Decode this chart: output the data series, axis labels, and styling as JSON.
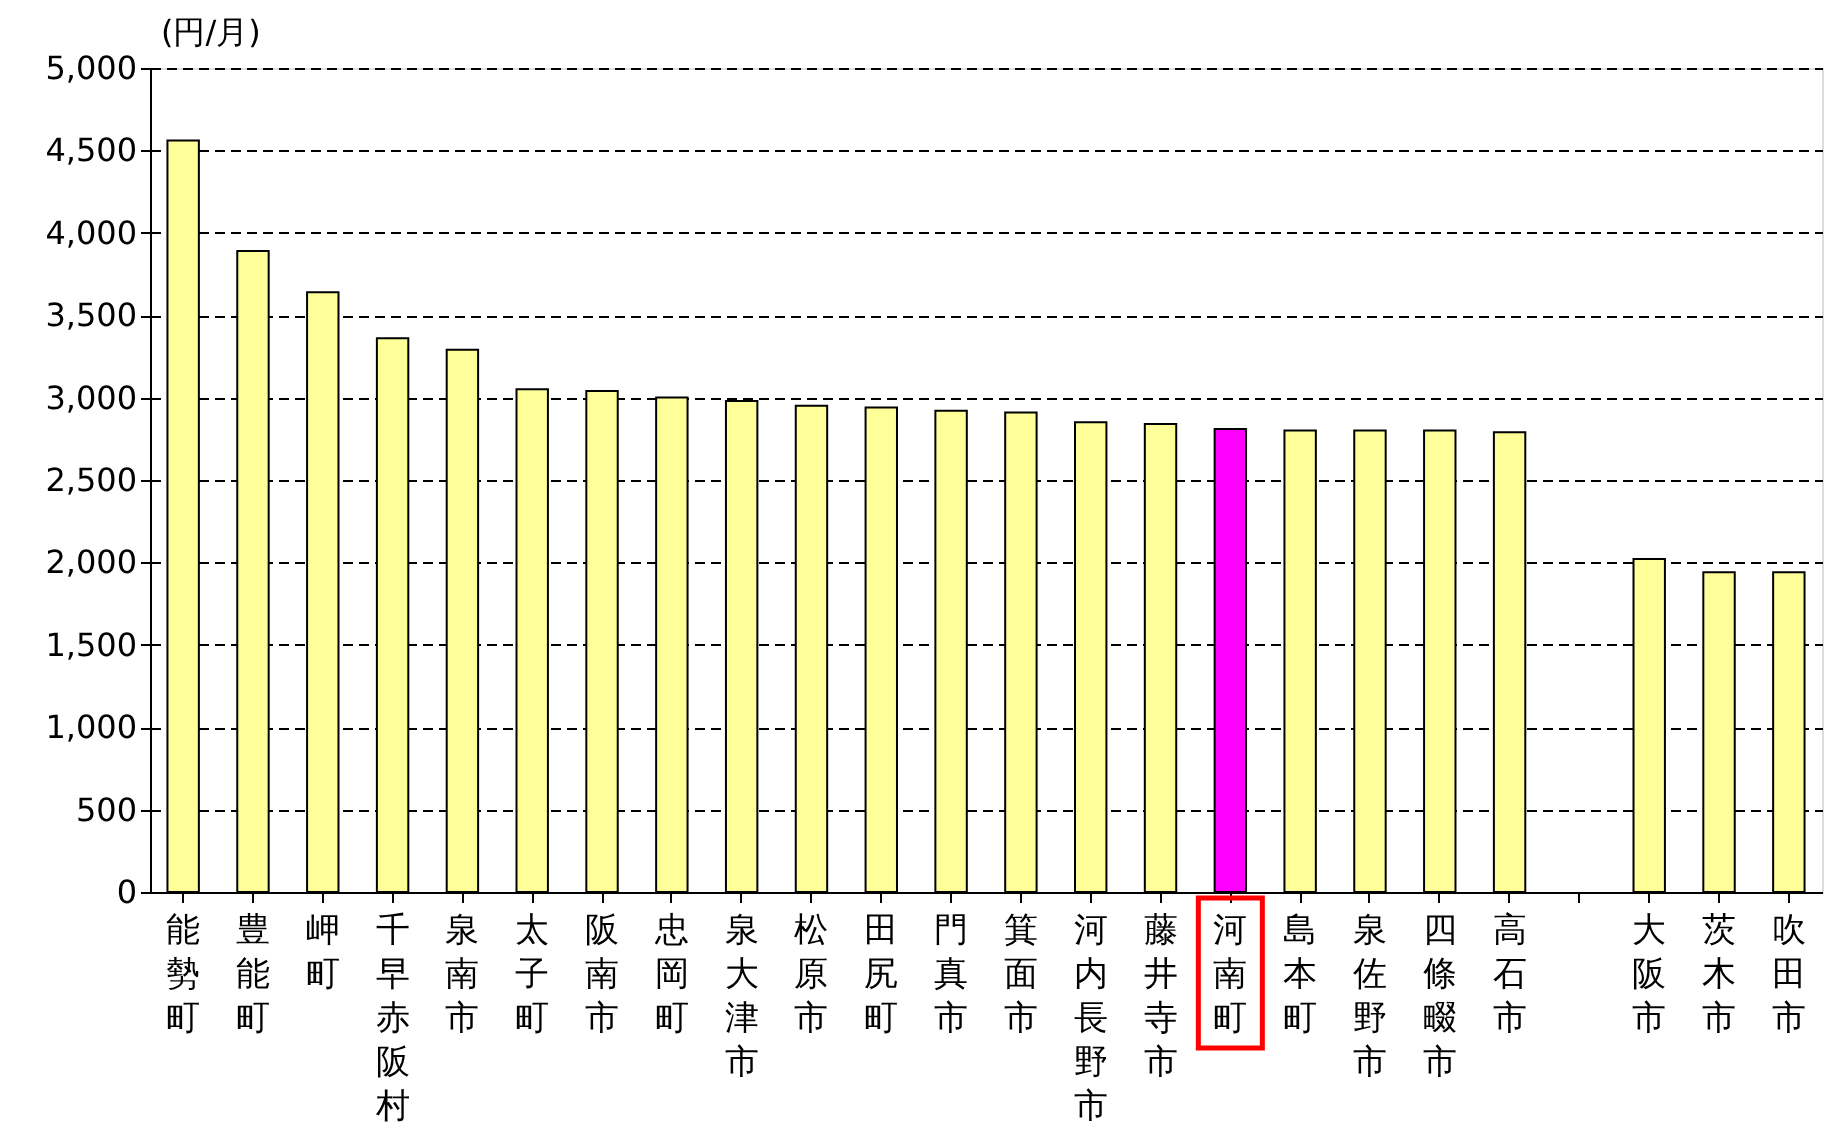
{
  "chart_data": {
    "type": "bar",
    "ylabel": "(円/月)",
    "categories": [
      "能勢町",
      "豊能町",
      "岬町",
      "千早赤阪村",
      "泉南市",
      "太子町",
      "阪南市",
      "忠岡町",
      "泉大津市",
      "松原市",
      "田尻町",
      "門真市",
      "箕面市",
      "河内長野市",
      "藤井寺市",
      "河南町",
      "島本町",
      "泉佐野市",
      "四條畷市",
      "高石市",
      null,
      "大阪市",
      "茨木市",
      "吹田市"
    ],
    "values": [
      4560,
      3890,
      3640,
      3360,
      3290,
      3050,
      3040,
      3000,
      2980,
      2950,
      2940,
      2920,
      2910,
      2850,
      2840,
      2810,
      2800,
      2800,
      2800,
      2790,
      null,
      2020,
      1940,
      1940
    ],
    "colors": [
      "#ffff99",
      "#ffff99",
      "#ffff99",
      "#ffff99",
      "#ffff99",
      "#ffff99",
      "#ffff99",
      "#ffff99",
      "#ffff99",
      "#ffff99",
      "#ffff99",
      "#ffff99",
      "#ffff99",
      "#ffff99",
      "#ffff99",
      "#ff00ff",
      "#ffff99",
      "#ffff99",
      "#ffff99",
      "#ffff99",
      "#ffff99",
      "#ffff99",
      "#ffff99",
      "#ffff99"
    ],
    "ylim": [
      0,
      5000
    ],
    "yticks": [
      0,
      {
        "value": 500,
        "label": "500"
      },
      {
        "value": 1000,
        "label": "1,000"
      },
      {
        "value": 1500,
        "label": "1,500"
      },
      {
        "value": 2000,
        "label": "2,000"
      },
      {
        "value": 2500,
        "label": "2,500"
      },
      {
        "value": 3000,
        "label": "3,000"
      },
      {
        "value": 3500,
        "label": "3,500"
      },
      {
        "value": 4000,
        "label": "4,000"
      },
      {
        "value": 4500,
        "label": "4,500"
      },
      {
        "value": 5000,
        "label": "5,000"
      }
    ],
    "grid": "y"
  }
}
